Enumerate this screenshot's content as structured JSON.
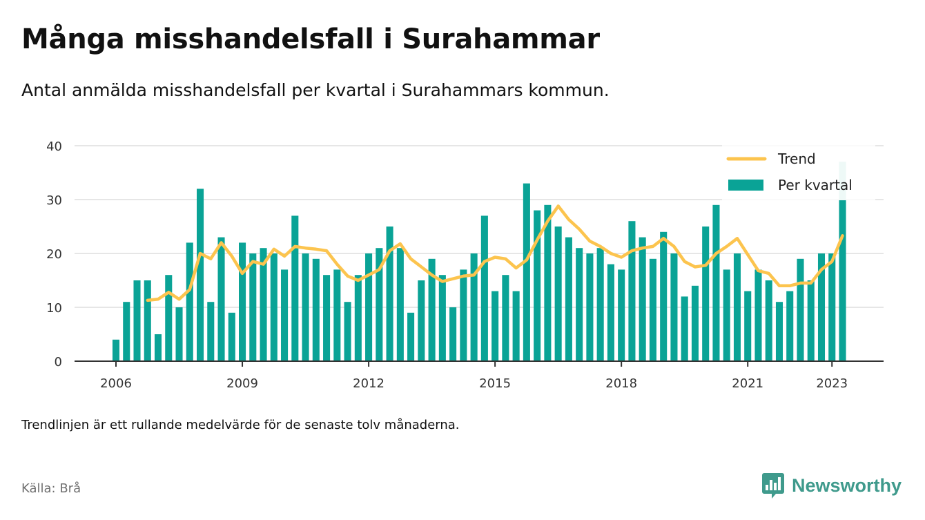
{
  "title": "Många misshandelsfall i Surahammar",
  "subtitle": "Antal anmälda misshandelsfall per kvartal i Surahammars kommun.",
  "note": "Trendlinjen är ett rullande medelvärde för de senaste tolv månaderna.",
  "source": "Källa: Brå",
  "brand": {
    "name": "Newsworthy",
    "icon": "bar-chart-speech-bubble-icon",
    "color": "#3f9a8c"
  },
  "colors": {
    "bars": "#0aa396",
    "trend": "#fcc44e",
    "last_bar": "#9fdcd4",
    "grid": "#dddddd",
    "axis": "#333333"
  },
  "chart_data": {
    "type": "bar",
    "title": "Många misshandelsfall i Surahammar",
    "subtitle": "Antal anmälda misshandelsfall per kvartal i Surahammars kommun.",
    "xlabel": "",
    "ylabel": "",
    "ylim": [
      0,
      40
    ],
    "yticks": [
      "0",
      "10",
      "20",
      "30",
      "40"
    ],
    "xticks": [
      "2006",
      "2009",
      "2012",
      "2015",
      "2018",
      "2021",
      "2023"
    ],
    "grid": true,
    "legend_position": "top-right",
    "categories": [
      "2006Q1",
      "2006Q2",
      "2006Q3",
      "2006Q4",
      "2007Q1",
      "2007Q2",
      "2007Q3",
      "2007Q4",
      "2008Q1",
      "2008Q2",
      "2008Q3",
      "2008Q4",
      "2009Q1",
      "2009Q2",
      "2009Q3",
      "2009Q4",
      "2010Q1",
      "2010Q2",
      "2010Q3",
      "2010Q4",
      "2011Q1",
      "2011Q2",
      "2011Q3",
      "2011Q4",
      "2012Q1",
      "2012Q2",
      "2012Q3",
      "2012Q4",
      "2013Q1",
      "2013Q2",
      "2013Q3",
      "2013Q4",
      "2014Q1",
      "2014Q2",
      "2014Q3",
      "2014Q4",
      "2015Q1",
      "2015Q2",
      "2015Q3",
      "2015Q4",
      "2016Q1",
      "2016Q2",
      "2016Q3",
      "2016Q4",
      "2017Q1",
      "2017Q2",
      "2017Q3",
      "2017Q4",
      "2018Q1",
      "2018Q2",
      "2018Q3",
      "2018Q4",
      "2019Q1",
      "2019Q2",
      "2019Q3",
      "2019Q4",
      "2020Q1",
      "2020Q2",
      "2020Q3",
      "2020Q4",
      "2021Q1",
      "2021Q2",
      "2021Q3",
      "2021Q4",
      "2022Q1",
      "2022Q2",
      "2022Q3",
      "2022Q4",
      "2023Q1",
      "2023Q2"
    ],
    "series": [
      {
        "name": "Per kvartal",
        "type": "bar",
        "values": [
          4,
          11,
          15,
          15,
          5,
          16,
          10,
          22,
          32,
          11,
          23,
          9,
          22,
          20,
          21,
          20,
          17,
          27,
          20,
          19,
          16,
          17,
          11,
          16,
          20,
          21,
          25,
          21,
          9,
          15,
          19,
          16,
          10,
          17,
          20,
          27,
          13,
          16,
          13,
          33,
          28,
          29,
          25,
          23,
          21,
          20,
          21,
          18,
          17,
          26,
          23,
          19,
          24,
          20,
          12,
          14,
          25,
          29,
          17,
          20,
          13,
          17,
          15,
          11,
          13,
          19,
          15,
          20,
          20,
          37
        ]
      },
      {
        "name": "Trend",
        "type": "line",
        "values": [
          null,
          null,
          null,
          11.3,
          11.5,
          12.8,
          11.5,
          13.3,
          20,
          19,
          22,
          19.5,
          16.3,
          18.5,
          18,
          20.8,
          19.5,
          21.3,
          21,
          20.8,
          20.5,
          18,
          15.8,
          15,
          16,
          17,
          20.5,
          21.8,
          19,
          17.5,
          16,
          14.8,
          15.3,
          15.8,
          16,
          18.5,
          19.3,
          19,
          17.3,
          18.8,
          22.5,
          26,
          28.8,
          26.3,
          24.5,
          22.3,
          21.3,
          20,
          19.3,
          20.5,
          21,
          21.3,
          22.8,
          21.3,
          18.5,
          17.5,
          17.8,
          20,
          21.3,
          22.8,
          19.8,
          16.8,
          16.3,
          14,
          14,
          14.5,
          14.5,
          17,
          18.5,
          23.3
        ]
      }
    ]
  }
}
